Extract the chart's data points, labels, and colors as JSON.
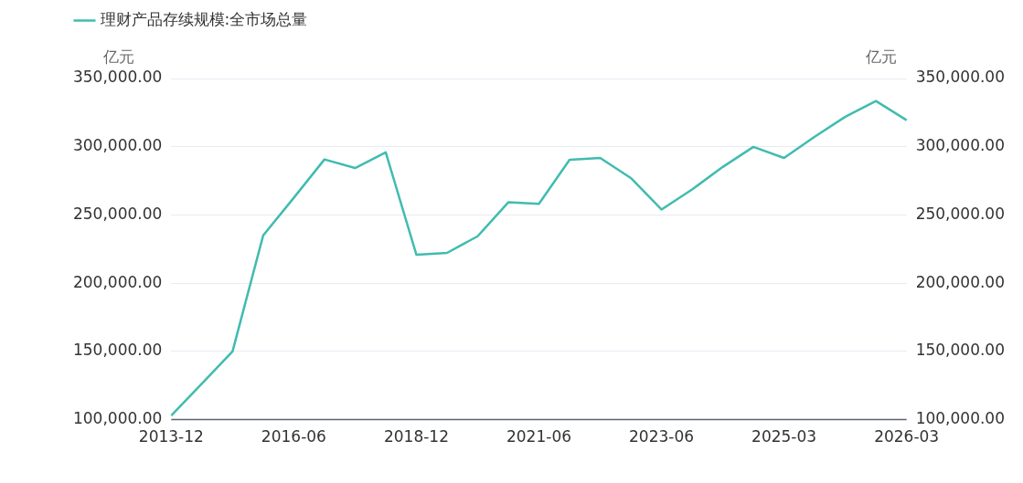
{
  "chart_data": {
    "type": "line",
    "ylabel": "亿元",
    "y2label": "亿元",
    "categories": [
      "2013-12",
      null,
      null,
      null,
      "2016-06",
      null,
      null,
      null,
      "2018-12",
      null,
      null,
      null,
      "2021-06",
      null,
      null,
      null,
      "2023-06",
      null,
      null,
      null,
      "2025-03",
      null,
      null,
      null,
      "2026-03"
    ],
    "series": [
      {
        "name": "理财产品存续规模:全市场总量",
        "color": "#40bcaf",
        "values": [
          103000,
          126400,
          150000,
          235000,
          262600,
          290700,
          284400,
          295900,
          220900,
          222200,
          234400,
          259300,
          258200,
          290500,
          291800,
          277100,
          254000,
          268700,
          285200,
          299900,
          291800,
          307300,
          322000,
          333500,
          319500
        ]
      }
    ],
    "ylim": [
      100000,
      350000
    ],
    "yticks": [
      {
        "value": 100000,
        "label": "100,000.00"
      },
      {
        "value": 150000,
        "label": "150,000.00"
      },
      {
        "value": 200000,
        "label": "200,000.00"
      },
      {
        "value": 250000,
        "label": "250,000.00"
      },
      {
        "value": 300000,
        "label": "300,000.00"
      },
      {
        "value": 350000,
        "label": "350,000.00"
      }
    ],
    "y2lim": [
      100000,
      350000
    ],
    "y2ticks": [
      {
        "value": 100000,
        "label": "100,000.00"
      },
      {
        "value": 150000,
        "label": "150,000.00"
      },
      {
        "value": 200000,
        "label": "200,000.00"
      },
      {
        "value": 250000,
        "label": "250,000.00"
      },
      {
        "value": 300000,
        "label": "300,000.00"
      },
      {
        "value": 350000,
        "label": "350,000.00"
      }
    ],
    "grid": "y",
    "legend": "top left",
    "marker": "none",
    "line_style": "solid"
  }
}
